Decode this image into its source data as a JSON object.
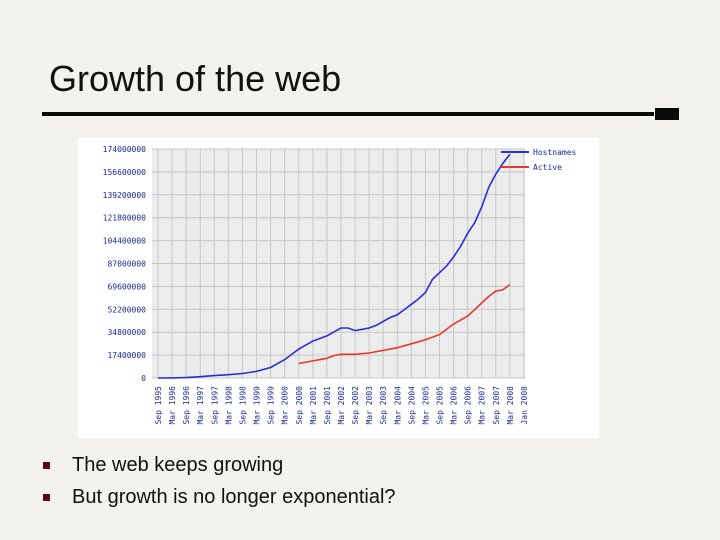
{
  "slide": {
    "title": "Growth of the web",
    "bullets": [
      "The web keeps growing",
      "But growth is no longer exponential?"
    ]
  },
  "colors": {
    "rule": "#0a0a0a",
    "bullet": "#5a0a14",
    "hostnames": "#2630d8",
    "active": "#e23a2a",
    "grid": "#c7c7c7",
    "plot_bg": "#ececec"
  },
  "chart_data": {
    "type": "line",
    "title": "",
    "xlabel": "",
    "ylabel": "",
    "ylim": [
      0,
      174000000
    ],
    "yticks": [
      "0",
      "17400000",
      "34800000",
      "52200000",
      "69600000",
      "87000000",
      "104400000",
      "121800000",
      "139200000",
      "156600000",
      "174000000"
    ],
    "xticks": [
      "Sep 1995",
      "Mar 1996",
      "Sep 1996",
      "Mar 1997",
      "Sep 1997",
      "Mar 1998",
      "Sep 1998",
      "Mar 1999",
      "Sep 1999",
      "Mar 2000",
      "Sep 2000",
      "Mar 2001",
      "Sep 2001",
      "Mar 2002",
      "Sep 2002",
      "Mar 2003",
      "Sep 2003",
      "Mar 2004",
      "Sep 2004",
      "Mar 2005",
      "Sep 2005",
      "Mar 2006",
      "Sep 2006",
      "Mar 2007",
      "Sep 2007",
      "Mar 2008",
      "Jan 2008"
    ],
    "grid": true,
    "legend_position": "top-right",
    "series": [
      {
        "name": "Hostnames",
        "color": "#2630d8",
        "points": [
          [
            0,
            18000
          ],
          [
            1,
            100000
          ],
          [
            2,
            340000
          ],
          [
            3,
            1000000
          ],
          [
            4,
            1800000
          ],
          [
            5,
            2500000
          ],
          [
            6,
            3400000
          ],
          [
            7,
            5000000
          ],
          [
            8,
            8000000
          ],
          [
            9,
            14000000
          ],
          [
            10,
            22000000
          ],
          [
            11,
            28000000
          ],
          [
            11.5,
            30000000
          ],
          [
            12,
            32000000
          ],
          [
            12.5,
            35000000
          ],
          [
            13,
            38000000
          ],
          [
            13.5,
            38000000
          ],
          [
            14,
            36000000
          ],
          [
            14.5,
            37000000
          ],
          [
            15,
            38000000
          ],
          [
            15.5,
            40000000
          ],
          [
            16,
            43000000
          ],
          [
            16.5,
            46000000
          ],
          [
            17,
            48000000
          ],
          [
            17.5,
            52000000
          ],
          [
            18,
            56000000
          ],
          [
            18.5,
            60000000
          ],
          [
            19,
            65000000
          ],
          [
            19.5,
            75000000
          ],
          [
            20,
            80000000
          ],
          [
            20.5,
            85000000
          ],
          [
            21,
            92000000
          ],
          [
            21.5,
            100000000
          ],
          [
            22,
            110000000
          ],
          [
            22.5,
            118000000
          ],
          [
            23,
            130000000
          ],
          [
            23.5,
            145000000
          ],
          [
            24,
            155000000
          ],
          [
            24.5,
            163000000
          ],
          [
            25,
            170000000
          ]
        ]
      },
      {
        "name": "Active",
        "color": "#e23a2a",
        "points": [
          [
            10,
            11000000
          ],
          [
            11,
            13000000
          ],
          [
            12,
            15000000
          ],
          [
            12.5,
            17000000
          ],
          [
            13,
            18000000
          ],
          [
            14,
            18000000
          ],
          [
            15,
            19000000
          ],
          [
            16,
            21000000
          ],
          [
            17,
            23000000
          ],
          [
            18,
            26000000
          ],
          [
            19,
            29000000
          ],
          [
            20,
            33000000
          ],
          [
            21,
            41000000
          ],
          [
            22,
            47000000
          ],
          [
            22.5,
            52000000
          ],
          [
            23,
            57000000
          ],
          [
            23.5,
            62000000
          ],
          [
            24,
            66000000
          ],
          [
            24.5,
            67000000
          ],
          [
            25,
            71000000
          ]
        ]
      }
    ]
  }
}
